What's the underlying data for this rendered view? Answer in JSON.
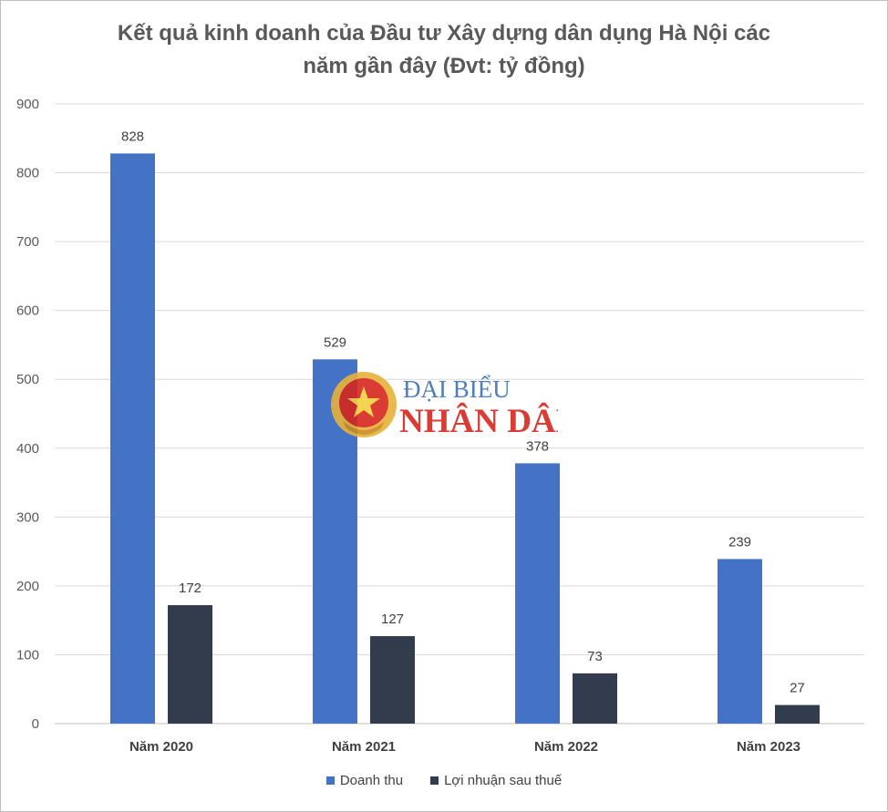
{
  "chart_data": {
    "type": "bar",
    "title_line1": "Kết quả kinh doanh của Đầu tư Xây dựng dân dụng Hà Nội các",
    "title_line2": "năm gần đây (Đvt: tỷ đồng)",
    "categories": [
      "Năm 2020",
      "Năm 2021",
      "Năm 2022",
      "Năm 2023"
    ],
    "series": [
      {
        "name": "Doanh thu",
        "values": [
          828,
          529,
          378,
          239
        ],
        "color": "#4472c4"
      },
      {
        "name": "Lợi nhuận sau thuế",
        "values": [
          172,
          127,
          73,
          27
        ],
        "color": "#323c4c"
      }
    ],
    "ylim": [
      0,
      900
    ],
    "yticks": [
      0,
      100,
      200,
      300,
      400,
      500,
      600,
      700,
      800,
      900
    ],
    "grid": true,
    "legend_position": "bottom"
  },
  "watermark": {
    "line1": "ĐẠI BIỂU",
    "line2": "NHÂN DÂN",
    "emblem": "vietnam-national-emblem-icon"
  }
}
